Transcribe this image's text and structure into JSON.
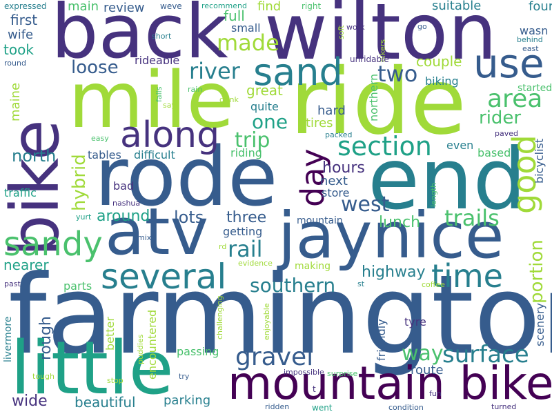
{
  "word_cloud": {
    "background": "#ffffff",
    "palette": [
      "#440154",
      "#46327e",
      "#365c8d",
      "#277f8e",
      "#1fa187",
      "#4ac16d",
      "#a0da39"
    ],
    "words": [
      {
        "text": "farmington",
        "color": "#365c8d",
        "orientation": "horizontal"
      },
      {
        "text": "ride",
        "color": "#a0da39",
        "orientation": "horizontal"
      },
      {
        "text": "wilton",
        "color": "#46327e",
        "orientation": "horizontal"
      },
      {
        "text": "back",
        "color": "#46327e",
        "orientation": "horizontal"
      },
      {
        "text": "mile",
        "color": "#a0da39",
        "orientation": "horizontal"
      },
      {
        "text": "rode",
        "color": "#365c8d",
        "orientation": "horizontal"
      },
      {
        "text": "end",
        "color": "#277f8e",
        "orientation": "horizontal"
      },
      {
        "text": "bike",
        "color": "#46327e",
        "orientation": "vertical"
      },
      {
        "text": "atv",
        "color": "#365c8d",
        "orientation": "horizontal"
      },
      {
        "text": "jaynice",
        "color": "#365c8d",
        "orientation": "horizontal"
      },
      {
        "text": "little",
        "color": "#1fa187",
        "orientation": "horizontal"
      },
      {
        "text": "mountain bike",
        "color": "#440154",
        "orientation": "horizontal"
      },
      {
        "text": "sand",
        "color": "#277f8e",
        "orientation": "horizontal"
      },
      {
        "text": "use",
        "color": "#365c8d",
        "orientation": "horizontal"
      },
      {
        "text": "along",
        "color": "#46327e",
        "orientation": "horizontal"
      },
      {
        "text": "sandy",
        "color": "#4ac16d",
        "orientation": "horizontal"
      },
      {
        "text": "several",
        "color": "#277f8e",
        "orientation": "horizontal"
      },
      {
        "text": "day",
        "color": "#440154",
        "orientation": "vertical"
      },
      {
        "text": "good",
        "color": "#a0da39",
        "orientation": "vertical"
      },
      {
        "text": "time",
        "color": "#277f8e",
        "orientation": "horizontal"
      },
      {
        "text": "section",
        "color": "#1fa187",
        "orientation": "horizontal"
      },
      {
        "text": "gravel",
        "color": "#365c8d",
        "orientation": "horizontal"
      },
      {
        "text": "surface",
        "color": "#277f8e",
        "orientation": "horizontal"
      },
      {
        "text": "west",
        "color": "#365c8d",
        "orientation": "horizontal"
      },
      {
        "text": "area",
        "color": "#4ac16d",
        "orientation": "horizontal"
      },
      {
        "text": "trails",
        "color": "#4ac16d",
        "orientation": "horizontal"
      },
      {
        "text": "portion",
        "color": "#a0da39",
        "orientation": "vertical"
      },
      {
        "text": "river",
        "color": "#277f8e",
        "orientation": "horizontal"
      },
      {
        "text": "two",
        "color": "#365c8d",
        "orientation": "horizontal"
      },
      {
        "text": "made",
        "color": "#a0da39",
        "orientation": "horizontal"
      },
      {
        "text": "southern",
        "color": "#277f8e",
        "orientation": "horizontal"
      },
      {
        "text": "rail",
        "color": "#277f8e",
        "orientation": "horizontal"
      },
      {
        "text": "way",
        "color": "#4ac16d",
        "orientation": "horizontal"
      },
      {
        "text": "hybrid",
        "color": "#a0da39",
        "orientation": "vertical"
      },
      {
        "text": "trip",
        "color": "#4ac16d",
        "orientation": "horizontal"
      },
      {
        "text": "loose",
        "color": "#365c8d",
        "orientation": "horizontal"
      },
      {
        "text": "north",
        "color": "#277f8e",
        "orientation": "horizontal"
      },
      {
        "text": "rider",
        "color": "#4ac16d",
        "orientation": "horizontal"
      },
      {
        "text": "hours",
        "color": "#46327e",
        "orientation": "horizontal"
      },
      {
        "text": "one",
        "color": "#1fa187",
        "orientation": "horizontal"
      },
      {
        "text": "lots",
        "color": "#365c8d",
        "orientation": "horizontal"
      },
      {
        "text": "three",
        "color": "#365c8d",
        "orientation": "horizontal"
      },
      {
        "text": "highway",
        "color": "#277f8e",
        "orientation": "horizontal"
      },
      {
        "text": "around",
        "color": "#1fa187",
        "orientation": "horizontal"
      },
      {
        "text": "lunch",
        "color": "#4ac16d",
        "orientation": "horizontal"
      },
      {
        "text": "rough",
        "color": "#365c8d",
        "orientation": "vertical"
      },
      {
        "text": "wide",
        "color": "#46327e",
        "orientation": "horizontal"
      },
      {
        "text": "beautiful",
        "color": "#277f8e",
        "orientation": "horizontal"
      },
      {
        "text": "parking",
        "color": "#277f8e",
        "orientation": "horizontal"
      },
      {
        "text": "route",
        "color": "#365c8d",
        "orientation": "horizontal"
      },
      {
        "text": "nearer",
        "color": "#1fa187",
        "orientation": "horizontal"
      },
      {
        "text": "took",
        "color": "#1fa187",
        "orientation": "horizontal"
      },
      {
        "text": "first",
        "color": "#365c8d",
        "orientation": "horizontal"
      },
      {
        "text": "couple",
        "color": "#a0da39",
        "orientation": "horizontal"
      },
      {
        "text": "great",
        "color": "#a0da39",
        "orientation": "horizontal"
      },
      {
        "text": "suitable",
        "color": "#277f8e",
        "orientation": "horizontal"
      },
      {
        "text": "four",
        "color": "#277f8e",
        "orientation": "horizontal"
      },
      {
        "text": "full",
        "color": "#4ac16d",
        "orientation": "horizontal"
      },
      {
        "text": "hard",
        "color": "#365c8d",
        "orientation": "horizontal"
      },
      {
        "text": "tires",
        "color": "#a0da39",
        "orientation": "horizontal"
      },
      {
        "text": "next",
        "color": "#365c8d",
        "orientation": "horizontal"
      },
      {
        "text": "getting",
        "color": "#365c8d",
        "orientation": "horizontal"
      },
      {
        "text": "passing",
        "color": "#4ac16d",
        "orientation": "horizontal"
      },
      {
        "text": "tyre",
        "color": "#46327e",
        "orientation": "horizontal"
      },
      {
        "text": "maine",
        "color": "#a0da39",
        "orientation": "vertical"
      },
      {
        "text": "mountain",
        "color": "#365c8d",
        "orientation": "horizontal"
      },
      {
        "text": "friendly",
        "color": "#365c8d",
        "orientation": "vertical"
      },
      {
        "text": "better",
        "color": "#a0da39",
        "orientation": "vertical"
      },
      {
        "text": "main",
        "color": "#4ac16d",
        "orientation": "horizontal"
      },
      {
        "text": "review",
        "color": "#365c8d",
        "orientation": "horizontal"
      },
      {
        "text": "find",
        "color": "#a0da39",
        "orientation": "horizontal"
      },
      {
        "text": "small",
        "color": "#365c8d",
        "orientation": "horizontal"
      },
      {
        "text": "wife",
        "color": "#365c8d",
        "orientation": "horizontal"
      },
      {
        "text": "rideable",
        "color": "#46327e",
        "orientation": "horizontal"
      },
      {
        "text": "quite",
        "color": "#277f8e",
        "orientation": "horizontal"
      },
      {
        "text": "biking",
        "color": "#277f8e",
        "orientation": "horizontal"
      },
      {
        "text": "started",
        "color": "#4ac16d",
        "orientation": "horizontal"
      },
      {
        "text": "northern",
        "color": "#4ac16d",
        "orientation": "vertical"
      },
      {
        "text": "wasn",
        "color": "#365c8d",
        "orientation": "horizontal"
      },
      {
        "text": "difficult",
        "color": "#277f8e",
        "orientation": "horizontal"
      },
      {
        "text": "riding",
        "color": "#4ac16d",
        "orientation": "horizontal"
      },
      {
        "text": "tables",
        "color": "#365c8d",
        "orientation": "horizontal"
      },
      {
        "text": "even",
        "color": "#277f8e",
        "orientation": "horizontal"
      },
      {
        "text": "based",
        "color": "#4ac16d",
        "orientation": "horizontal"
      },
      {
        "text": "bicyclist",
        "color": "#365c8d",
        "orientation": "vertical"
      },
      {
        "text": "store",
        "color": "#365c8d",
        "orientation": "horizontal"
      },
      {
        "text": "bad",
        "color": "#46327e",
        "orientation": "horizontal"
      },
      {
        "text": "traffic",
        "color": "#1fa187",
        "orientation": "horizontal"
      },
      {
        "text": "making",
        "color": "#a0da39",
        "orientation": "horizontal"
      },
      {
        "text": "parts",
        "color": "#4ac16d",
        "orientation": "horizontal"
      },
      {
        "text": "scenery",
        "color": "#365c8d",
        "orientation": "vertical"
      },
      {
        "text": "encountered",
        "color": "#a0da39",
        "orientation": "vertical"
      },
      {
        "text": "livermore",
        "color": "#277f8e",
        "orientation": "vertical"
      },
      {
        "text": "expressed",
        "color": "#277f8e",
        "orientation": "horizontal"
      },
      {
        "text": "weve",
        "color": "#365c8d",
        "orientation": "horizontal"
      },
      {
        "text": "recommend",
        "color": "#1fa187",
        "orientation": "horizontal"
      },
      {
        "text": "right",
        "color": "#4ac16d",
        "orientation": "horizontal"
      },
      {
        "text": "soft",
        "color": "#a0da39",
        "orientation": "vertical"
      },
      {
        "text": "work",
        "color": "#46327e",
        "orientation": "horizontal"
      },
      {
        "text": "bikers",
        "color": "#a0da39",
        "orientation": "vertical"
      },
      {
        "text": "go",
        "color": "#365c8d",
        "orientation": "horizontal"
      },
      {
        "text": "behind",
        "color": "#277f8e",
        "orientation": "horizontal"
      },
      {
        "text": "east",
        "color": "#365c8d",
        "orientation": "horizontal"
      },
      {
        "text": "short",
        "color": "#277f8e",
        "orientation": "horizontal"
      },
      {
        "text": "round",
        "color": "#365c8d",
        "orientation": "horizontal"
      },
      {
        "text": "unridable",
        "color": "#46327e",
        "orientation": "horizontal"
      },
      {
        "text": "falls",
        "color": "#4ac16d",
        "orientation": "vertical"
      },
      {
        "text": "rain",
        "color": "#4ac16d",
        "orientation": "horizontal"
      },
      {
        "text": "say",
        "color": "#a0da39",
        "orientation": "horizontal"
      },
      {
        "text": "easy",
        "color": "#4ac16d",
        "orientation": "horizontal"
      },
      {
        "text": "drink",
        "color": "#a0da39",
        "orientation": "horizontal"
      },
      {
        "text": "packed",
        "color": "#277f8e",
        "orientation": "horizontal"
      },
      {
        "text": "paved",
        "color": "#46327e",
        "orientation": "horizontal"
      },
      {
        "text": "nashua",
        "color": "#46327e",
        "orientation": "horizontal"
      },
      {
        "text": "yurt",
        "color": "#1fa187",
        "orientation": "horizontal"
      },
      {
        "text": "length",
        "color": "#4ac16d",
        "orientation": "vertical"
      },
      {
        "text": "mix",
        "color": "#365c8d",
        "orientation": "horizontal"
      },
      {
        "text": "rd",
        "color": "#a0da39",
        "orientation": "horizontal"
      },
      {
        "text": "evidence",
        "color": "#a0da39",
        "orientation": "horizontal"
      },
      {
        "text": "past",
        "color": "#46327e",
        "orientation": "horizontal"
      },
      {
        "text": "st",
        "color": "#277f8e",
        "orientation": "horizontal"
      },
      {
        "text": "coffee",
        "color": "#a0da39",
        "orientation": "horizontal"
      },
      {
        "text": "challenging",
        "color": "#a0da39",
        "orientation": "vertical"
      },
      {
        "text": "puddies",
        "color": "#a0da39",
        "orientation": "vertical"
      },
      {
        "text": "enjoyable",
        "color": "#a0da39",
        "orientation": "vertical"
      },
      {
        "text": "tough",
        "color": "#a0da39",
        "orientation": "horizontal"
      },
      {
        "text": "stop",
        "color": "#a0da39",
        "orientation": "horizontal"
      },
      {
        "text": "try",
        "color": "#365c8d",
        "orientation": "horizontal"
      },
      {
        "text": "impossible",
        "color": "#46327e",
        "orientation": "horizontal"
      },
      {
        "text": "surprise",
        "color": "#4ac16d",
        "orientation": "horizontal"
      },
      {
        "text": "t",
        "color": "#46327e",
        "orientation": "horizontal"
      },
      {
        "text": "fun",
        "color": "#46327e",
        "orientation": "horizontal"
      },
      {
        "text": "ridden",
        "color": "#365c8d",
        "orientation": "horizontal"
      },
      {
        "text": "went",
        "color": "#1fa187",
        "orientation": "horizontal"
      },
      {
        "text": "condition",
        "color": "#365c8d",
        "orientation": "horizontal"
      },
      {
        "text": "turned",
        "color": "#46327e",
        "orientation": "horizontal"
      }
    ]
  }
}
